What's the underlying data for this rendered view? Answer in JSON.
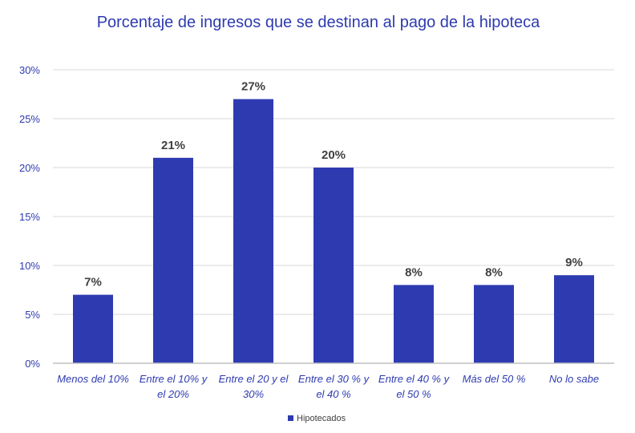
{
  "chart_data": {
    "type": "bar",
    "title": "Porcentaje de ingresos que se destinan al pago de la hipoteca",
    "categories": [
      [
        "Menos del 10%"
      ],
      [
        "Entre el 10% y",
        "el 20%"
      ],
      [
        "Entre el 20 y el",
        "30%"
      ],
      [
        "Entre el 30 % y",
        "el 40 %"
      ],
      [
        "Entre el 40 % y",
        "el 50 %"
      ],
      [
        "Más del 50 %"
      ],
      [
        "No lo sabe"
      ]
    ],
    "series": [
      {
        "name": "Hipotecados",
        "values": [
          7,
          21,
          27,
          20,
          8,
          8,
          9
        ],
        "color": "#2e3bb0"
      }
    ],
    "data_labels": [
      "7%",
      "21%",
      "27%",
      "20%",
      "8%",
      "8%",
      "9%"
    ],
    "y_ticks": [
      "0%",
      "5%",
      "10%",
      "15%",
      "20%",
      "25%",
      "30%"
    ],
    "ylim": [
      0,
      30
    ],
    "grid": true,
    "legend_position": "bottom",
    "colors": {
      "bar": "#2e3bb0",
      "title": "#2e3bb0",
      "gridline": "#d9d9d9",
      "axis": "#bfbfbf",
      "label": "#404040"
    }
  }
}
